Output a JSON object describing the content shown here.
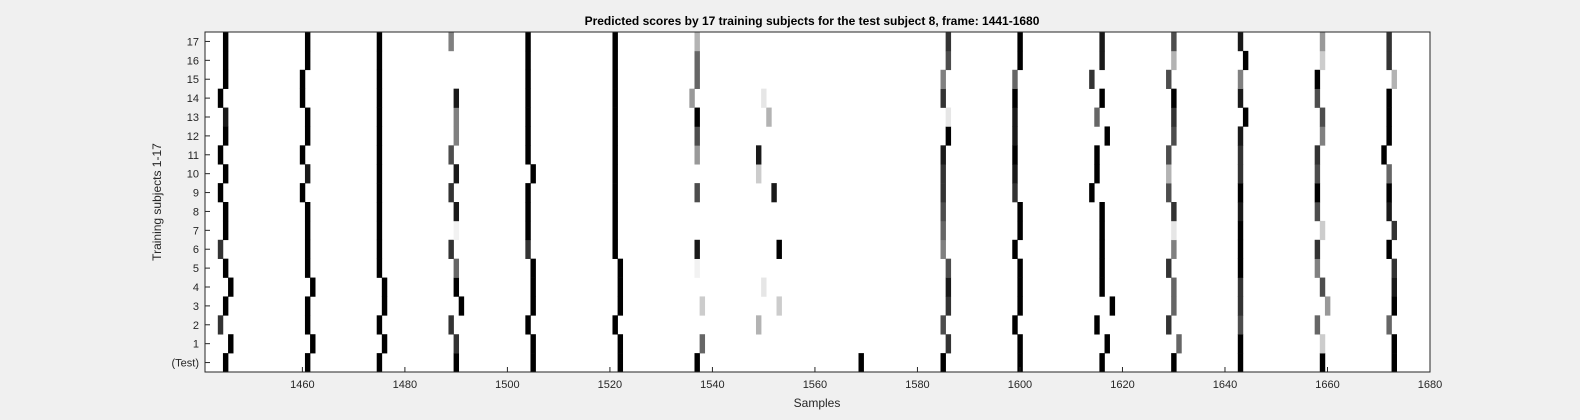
{
  "chart_data": {
    "type": "heatmap",
    "title": "Predicted scores by 17 training subjects for the test subject 8, frame: 1441-1680",
    "xlabel": "Samples",
    "ylabel": "Training subjects 1-17",
    "xlim": [
      1441,
      1680
    ],
    "x_ticks": [
      "1460",
      "1480",
      "1500",
      "1520",
      "1540",
      "1560",
      "1580",
      "1600",
      "1620",
      "1640",
      "1660",
      "1680"
    ],
    "rows": [
      "(Test)",
      "1",
      "2",
      "3",
      "4",
      "5",
      "6",
      "7",
      "8",
      "9",
      "10",
      "11",
      "12",
      "13",
      "14",
      "15",
      "16",
      "17"
    ],
    "colormap": "gray, white = 0, black = 1",
    "colors": {
      "background": "#f0f0f0",
      "plot_background": "#ffffff",
      "axis": "#262626"
    },
    "marks": [
      {
        "row": "(Test)",
        "cols": [
          1445,
          1461,
          1475,
          1490,
          1505,
          1522,
          1537,
          1569,
          1585,
          1600,
          1616,
          1630,
          1643,
          1659,
          1673
        ],
        "levels": [
          1,
          1,
          1,
          1,
          1,
          1,
          1,
          1,
          1,
          1,
          1,
          1,
          1,
          1,
          1
        ]
      },
      {
        "row": "1",
        "cols": [
          1446,
          1462,
          1476,
          1490,
          1505,
          1522,
          1538,
          1586,
          1600,
          1617,
          1631,
          1643,
          1659,
          1673
        ],
        "levels": [
          1,
          1,
          1,
          0.8,
          1,
          1,
          0.6,
          0.8,
          1,
          1,
          0.6,
          1,
          0.2,
          1
        ]
      },
      {
        "row": "2",
        "cols": [
          1444,
          1461,
          1475,
          1489,
          1504,
          1521,
          1549,
          1585,
          1599,
          1615,
          1629,
          1643,
          1658,
          1672
        ],
        "levels": [
          0.8,
          1,
          1,
          0.8,
          1,
          1,
          0.3,
          0.7,
          1,
          1,
          0.8,
          0.7,
          0.6,
          0.6
        ]
      },
      {
        "row": "3",
        "cols": [
          1445,
          1461,
          1476,
          1491,
          1505,
          1522,
          1538,
          1553,
          1586,
          1600,
          1618,
          1630,
          1643,
          1660,
          1673
        ],
        "levels": [
          1,
          1,
          1,
          1,
          1,
          1,
          0.2,
          0.2,
          0.8,
          1,
          1,
          0.6,
          0.8,
          0.4,
          1
        ]
      },
      {
        "row": "4",
        "cols": [
          1446,
          1462,
          1476,
          1490,
          1505,
          1522,
          1550,
          1586,
          1600,
          1616,
          1630,
          1643,
          1659,
          1673
        ],
        "levels": [
          1,
          1,
          1,
          1,
          1,
          1,
          0.1,
          0.9,
          1,
          1,
          0.6,
          0.8,
          0.7,
          0.9
        ]
      },
      {
        "row": "5",
        "cols": [
          1445,
          1461,
          1475,
          1490,
          1505,
          1522,
          1537,
          1586,
          1600,
          1616,
          1629,
          1643,
          1658,
          1673
        ],
        "levels": [
          1,
          1,
          1,
          0.6,
          1,
          1,
          0.05,
          0.7,
          1,
          1,
          0.8,
          1,
          0.5,
          0.8
        ]
      },
      {
        "row": "6",
        "cols": [
          1444,
          1461,
          1475,
          1489,
          1504,
          1521,
          1537,
          1553,
          1585,
          1599,
          1616,
          1630,
          1643,
          1658,
          1672
        ],
        "levels": [
          0.8,
          1,
          1,
          0.8,
          0.8,
          1,
          0.9,
          1,
          0.5,
          1,
          1,
          0.5,
          1,
          0.8,
          1
        ]
      },
      {
        "row": "7",
        "cols": [
          1445,
          1461,
          1475,
          1490,
          1504,
          1521,
          1585,
          1600,
          1616,
          1630,
          1643,
          1659,
          1673
        ],
        "levels": [
          1,
          1,
          1,
          0.05,
          1,
          1,
          0.6,
          1,
          1,
          0.1,
          1,
          0.2,
          0.8
        ]
      },
      {
        "row": "8",
        "cols": [
          1445,
          1461,
          1475,
          1490,
          1504,
          1521,
          1585,
          1600,
          1616,
          1630,
          1643,
          1658,
          1672
        ],
        "levels": [
          1,
          1,
          1,
          0.9,
          1,
          1,
          0.7,
          1,
          1,
          0.8,
          0.9,
          0.7,
          0.9
        ]
      },
      {
        "row": "9",
        "cols": [
          1444,
          1460,
          1475,
          1489,
          1504,
          1521,
          1537,
          1552,
          1585,
          1599,
          1614,
          1629,
          1643,
          1658,
          1672
        ],
        "levels": [
          1,
          1,
          1,
          0.8,
          1,
          1,
          0.7,
          0.9,
          0.8,
          0.8,
          1,
          0.7,
          1,
          1,
          1
        ]
      },
      {
        "row": "10",
        "cols": [
          1445,
          1461,
          1475,
          1490,
          1505,
          1521,
          1549,
          1585,
          1599,
          1615,
          1629,
          1643,
          1658,
          1672
        ],
        "levels": [
          1,
          0.9,
          1,
          0.9,
          1,
          1,
          0.2,
          0.8,
          0.9,
          1,
          0.3,
          0.8,
          0.7,
          0.6
        ]
      },
      {
        "row": "11",
        "cols": [
          1444,
          1460,
          1475,
          1489,
          1504,
          1521,
          1537,
          1549,
          1585,
          1599,
          1615,
          1629,
          1643,
          1658,
          1671
        ],
        "levels": [
          1,
          1,
          1,
          0.7,
          1,
          1,
          0.4,
          0.9,
          0.9,
          1,
          1,
          0.7,
          0.8,
          0.8,
          1
        ]
      },
      {
        "row": "12",
        "cols": [
          1445,
          1461,
          1475,
          1490,
          1504,
          1521,
          1537,
          1586,
          1599,
          1617,
          1630,
          1643,
          1659,
          1672
        ],
        "levels": [
          1,
          1,
          1,
          0.5,
          1,
          1,
          0.7,
          1,
          0.9,
          1,
          0.7,
          0.9,
          0.5,
          1
        ]
      },
      {
        "row": "13",
        "cols": [
          1445,
          1461,
          1475,
          1490,
          1504,
          1521,
          1537,
          1551,
          1586,
          1599,
          1615,
          1630,
          1644,
          1659,
          1672
        ],
        "levels": [
          0.9,
          1,
          1,
          0.5,
          1,
          1,
          1,
          0.3,
          0.1,
          0.9,
          0.6,
          0.8,
          1,
          0.7,
          1
        ]
      },
      {
        "row": "14",
        "cols": [
          1444,
          1460,
          1475,
          1490,
          1504,
          1521,
          1536,
          1550,
          1585,
          1599,
          1616,
          1630,
          1643,
          1658,
          1672
        ],
        "levels": [
          1,
          1,
          1,
          0.9,
          1,
          1,
          0.4,
          0.1,
          0.8,
          1,
          1,
          1,
          0.9,
          0.7,
          1
        ]
      },
      {
        "row": "15",
        "cols": [
          1445,
          1460,
          1475,
          1504,
          1521,
          1537,
          1585,
          1599,
          1614,
          1629,
          1643,
          1658,
          1673
        ],
        "levels": [
          1,
          1,
          1,
          1,
          1,
          0.6,
          0.5,
          0.6,
          0.8,
          0.7,
          0.5,
          1,
          0.3
        ]
      },
      {
        "row": "16",
        "cols": [
          1445,
          1461,
          1475,
          1504,
          1521,
          1537,
          1586,
          1600,
          1616,
          1630,
          1644,
          1659,
          1672
        ],
        "levels": [
          1,
          1,
          1,
          1,
          1,
          0.6,
          0.7,
          1,
          0.9,
          0.3,
          1,
          0.2,
          0.8
        ]
      },
      {
        "row": "17",
        "cols": [
          1445,
          1461,
          1475,
          1489,
          1504,
          1521,
          1537,
          1586,
          1600,
          1616,
          1630,
          1643,
          1659,
          1672
        ],
        "levels": [
          1,
          1,
          1,
          0.5,
          1,
          1,
          0.3,
          0.8,
          1,
          0.9,
          0.7,
          0.9,
          0.4,
          0.8
        ]
      }
    ]
  }
}
